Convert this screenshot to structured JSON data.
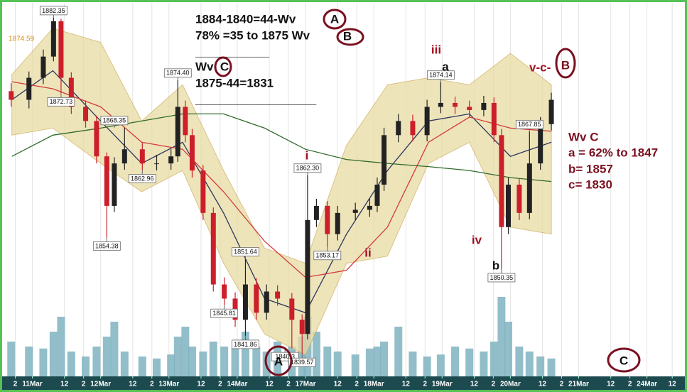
{
  "chart_data": {
    "type": "candlestick",
    "x": [
      -0.31,
      -0.05,
      0.16,
      0.31,
      0.42,
      0.57,
      0.78,
      0.94,
      1.09,
      1.2,
      1.35,
      1.61,
      1.82,
      2.03,
      2.13,
      2.24,
      2.34,
      2.5,
      2.65,
      2.81,
      2.97,
      3.12,
      3.28,
      3.43,
      3.59,
      3.8,
      3.95,
      4.03,
      4.16,
      4.32,
      4.47,
      4.73,
      4.94,
      5.05,
      5.15,
      5.36,
      5.57,
      5.78,
      5.98,
      6.19,
      6.4,
      6.61,
      6.76,
      6.87,
      6.97,
      7.13,
      7.28,
      7.44,
      7.6
    ],
    "open": [
      1873.0,
      1871.9,
      1874.7,
      1877.4,
      1881.9,
      1874.7,
      1871.0,
      1869.2,
      1864.7,
      1858.4,
      1863.8,
      1865.6,
      1863.8,
      1863.8,
      1864.7,
      1871.0,
      1867.4,
      1862.9,
      1857.5,
      1848.4,
      1846.6,
      1843.9,
      1848.4,
      1844.8,
      1847.5,
      1846.6,
      1843.9,
      1842.1,
      1856.6,
      1858.4,
      1854.8,
      1857.5,
      1857.9,
      1858.4,
      1861.1,
      1867.4,
      1869.2,
      1867.4,
      1871.0,
      1871.5,
      1871.0,
      1870.6,
      1871.5,
      1867.4,
      1855.7,
      1861.1,
      1857.5,
      1863.8,
      1868.8
    ],
    "high": [
      1874.0,
      1875.5,
      1878.3,
      1882.35,
      1882.2,
      1875.4,
      1871.8,
      1869.9,
      1865.2,
      1864.6,
      1868.35,
      1866.4,
      1864.9,
      1865.6,
      1874.4,
      1871.8,
      1868.2,
      1863.6,
      1858.2,
      1849.3,
      1847.4,
      1851.64,
      1849.2,
      1848.4,
      1848.3,
      1847.3,
      1844.6,
      1862.3,
      1859.3,
      1859.0,
      1858.4,
      1858.8,
      1859.3,
      1862.0,
      1868.35,
      1870.1,
      1870.0,
      1871.9,
      1874.14,
      1872.3,
      1871.8,
      1872.4,
      1872.2,
      1868.2,
      1862.0,
      1861.9,
      1867.85,
      1869.7,
      1872.8
    ],
    "low": [
      1871.0,
      1870.8,
      1873.9,
      1876.8,
      1872.73,
      1870.1,
      1868.35,
      1863.8,
      1854.38,
      1857.6,
      1863.0,
      1862.96,
      1862.9,
      1863.0,
      1864.0,
      1866.5,
      1862.0,
      1856.6,
      1847.5,
      1845.81,
      1843.0,
      1841.86,
      1843.9,
      1843.9,
      1845.7,
      1840.3,
      1839.57,
      1841.4,
      1855.7,
      1853.17,
      1854.0,
      1856.6,
      1857.0,
      1857.6,
      1860.3,
      1866.5,
      1866.6,
      1866.6,
      1870.2,
      1870.1,
      1869.7,
      1869.8,
      1866.5,
      1850.35,
      1854.8,
      1856.6,
      1856.7,
      1863.0,
      1868.0
    ],
    "close": [
      1871.9,
      1874.7,
      1877.4,
      1881.9,
      1874.7,
      1871.0,
      1869.2,
      1864.7,
      1858.4,
      1863.8,
      1865.6,
      1863.8,
      1863.8,
      1864.7,
      1871.0,
      1867.4,
      1862.9,
      1857.5,
      1848.4,
      1846.6,
      1843.9,
      1848.4,
      1844.8,
      1847.5,
      1846.6,
      1843.9,
      1842.1,
      1856.6,
      1858.4,
      1854.8,
      1857.5,
      1857.9,
      1858.4,
      1861.1,
      1867.4,
      1869.2,
      1867.4,
      1871.0,
      1871.5,
      1871.0,
      1870.6,
      1871.5,
      1867.4,
      1855.7,
      1861.1,
      1857.5,
      1863.8,
      1868.8,
      1871.9
    ],
    "volume": [
      35,
      30,
      28,
      45,
      60,
      25,
      20,
      30,
      40,
      55,
      25,
      20,
      18,
      22,
      40,
      50,
      30,
      25,
      35,
      30,
      28,
      45,
      30,
      25,
      35,
      30,
      40,
      60,
      45,
      30,
      25,
      22,
      28,
      30,
      35,
      50,
      25,
      20,
      22,
      30,
      28,
      25,
      35,
      80,
      55,
      30,
      25,
      20,
      18
    ],
    "up_color": "#222222",
    "down_color": "#cc1f2a",
    "volume_color": "#7fb3bf",
    "xlim": [
      -0.37,
      9.42
    ],
    "ylim": [
      1836.7,
      1884.6
    ],
    "volume_lim": [
      0,
      100
    ],
    "xticks": [
      {
        "value": -0.25,
        "label": "2"
      },
      {
        "value": 0,
        "label": "11Mar"
      },
      {
        "value": 0.47,
        "label": "12"
      },
      {
        "value": 0.75,
        "label": "2"
      },
      {
        "value": 1,
        "label": "12Mar"
      },
      {
        "value": 1.47,
        "label": "12"
      },
      {
        "value": 1.75,
        "label": "2"
      },
      {
        "value": 2,
        "label": "13Mar"
      },
      {
        "value": 2.47,
        "label": "12"
      },
      {
        "value": 2.75,
        "label": "2"
      },
      {
        "value": 3,
        "label": "14Mar"
      },
      {
        "value": 3.47,
        "label": "12"
      },
      {
        "value": 3.75,
        "label": "2"
      },
      {
        "value": 4,
        "label": "17Mar"
      },
      {
        "value": 4.47,
        "label": "12"
      },
      {
        "value": 4.75,
        "label": "2"
      },
      {
        "value": 5,
        "label": "18Mar"
      },
      {
        "value": 5.47,
        "label": "12"
      },
      {
        "value": 5.75,
        "label": "2"
      },
      {
        "value": 6,
        "label": "19Mar"
      },
      {
        "value": 6.47,
        "label": "12"
      },
      {
        "value": 6.75,
        "label": "2"
      },
      {
        "value": 7,
        "label": "20Mar"
      },
      {
        "value": 7.47,
        "label": "12"
      },
      {
        "value": 7.75,
        "label": "2"
      },
      {
        "value": 8,
        "label": "21Mar"
      },
      {
        "value": 8.47,
        "label": "12"
      },
      {
        "value": 8.75,
        "label": "2"
      },
      {
        "value": 9,
        "label": "24Mar"
      },
      {
        "value": 9.37,
        "label": "12"
      }
    ],
    "overlay_x": [
      -0.3,
      0.3,
      1,
      1.6,
      2.2,
      2.8,
      3.4,
      4,
      4.6,
      5.2,
      5.8,
      6.4,
      7,
      7.6
    ],
    "band_upper": [
      1875.1,
      1881.0,
      1879.2,
      1869.2,
      1873.8,
      1862.9,
      1853.0,
      1851.1,
      1866.1,
      1873.8,
      1874.7,
      1873.8,
      1877.8,
      1873.8
    ],
    "band_lower": [
      1867.4,
      1868.3,
      1863.8,
      1860.2,
      1862.9,
      1851.1,
      1842.1,
      1839.4,
      1851.1,
      1852.0,
      1863.8,
      1866.5,
      1855.7,
      1854.8
    ],
    "band_color": "#e9dba4",
    "lines": [
      {
        "color": "#2a3560",
        "values": [
          1871.9,
          1875.6,
          1869.2,
          1863.8,
          1866.5,
          1857.5,
          1846.6,
          1844.8,
          1854.8,
          1862.9,
          1869.2,
          1870.1,
          1864.7,
          1866.5
        ]
      },
      {
        "color": "#d23a3a",
        "values": [
          1874.2,
          1873.3,
          1871.0,
          1866.5,
          1865.6,
          1860.2,
          1853.9,
          1849.3,
          1850.2,
          1855.7,
          1866.5,
          1869.7,
          1868.3,
          1867.9
        ]
      },
      {
        "color": "#2f6b2a",
        "values": [
          1864.7,
          1867.4,
          1868.3,
          1869.2,
          1870.1,
          1870.1,
          1868.3,
          1865.6,
          1864.3,
          1863.8,
          1863.4,
          1862.9,
          1862.0,
          1861.5
        ]
      }
    ],
    "price_labels": [
      {
        "x": 0.31,
        "value": 1882.35
      },
      {
        "x": 0.42,
        "value": 1872.73
      },
      {
        "x": 1.2,
        "value": 1868.35
      },
      {
        "x": 1.61,
        "value": 1862.96
      },
      {
        "x": 1.09,
        "value": 1854.38
      },
      {
        "x": 2.13,
        "value": 1874.4,
        "label": "1874.40"
      },
      {
        "x": 2.81,
        "value": 1845.81
      },
      {
        "x": 3.12,
        "value": 1851.64
      },
      {
        "x": 3.12,
        "value": 1841.86
      },
      {
        "x": 3.7,
        "value": 1840.3
      },
      {
        "x": 3.95,
        "value": 1839.57
      },
      {
        "x": 4.03,
        "value": 1862.3,
        "label": "1862.30"
      },
      {
        "x": 4.32,
        "value": 1853.17
      },
      {
        "x": 5.98,
        "value": 1874.14
      },
      {
        "x": 6.87,
        "value": 1850.35
      },
      {
        "x": 7.28,
        "value": 1867.85
      }
    ],
    "last_price": 1874.59,
    "notes": [
      "1884-1840=44-Wv",
      "78% =35 to 1875 Wv",
      "___________",
      "Wv",
      "1875-44=1831",
      "__________________"
    ],
    "circles": [
      "A",
      "B",
      "C",
      "B",
      "A",
      "C"
    ],
    "wave_notes": [
      "Wv C",
      "a = 62% to 1847",
      "b= 1857",
      "c= 1830"
    ],
    "wave_labels": [
      "i",
      "ii",
      "iii",
      "iv",
      "a",
      "b",
      "v-c-"
    ]
  }
}
